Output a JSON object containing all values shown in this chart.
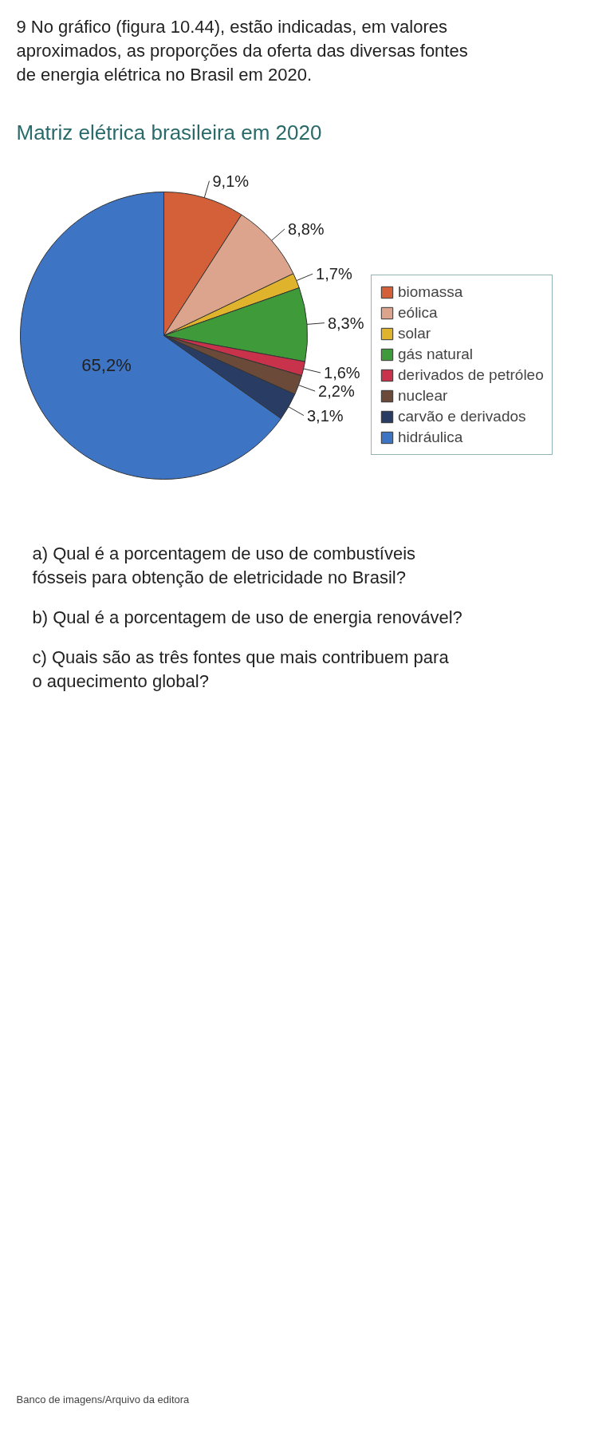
{
  "chart_data": {
    "type": "pie",
    "title": "Matriz elétrica brasileira em 2020",
    "categories": [
      "biomassa",
      "eólica",
      "solar",
      "gás natural",
      "derivados de petróleo",
      "nuclear",
      "carvão e derivados",
      "hidráulica"
    ],
    "values": [
      9.1,
      8.8,
      1.7,
      8.3,
      1.6,
      2.2,
      3.1,
      65.2
    ],
    "colors": [
      "#d4603a",
      "#dca48c",
      "#e0b32c",
      "#3f9a3a",
      "#c8324a",
      "#6b4a3a",
      "#283c64",
      "#3d74c4"
    ],
    "value_labels": [
      "9,1%",
      "8,8%",
      "1,7%",
      "8,3%",
      "1,6%",
      "2,2%",
      "3,1%",
      "65,2%"
    ],
    "legend": "right",
    "annotations": [
      "9 No gráfico (figura 10.44), estão indicadas, em valores aproximados, as proporções da oferta das diversas fontes de energia elétrica no Brasil em 2020.",
      "a) Qual é a porcentagem de uso de combustíveis fósseis para obtenção de eletricidade no Brasil?",
      "b) Qual é a porcentagem de uso de energia renovável?",
      "c) Quais são as três fontes que mais contribuem para o aquecimento global?",
      "Banco de imagens/Arquivo da editora"
    ]
  }
}
